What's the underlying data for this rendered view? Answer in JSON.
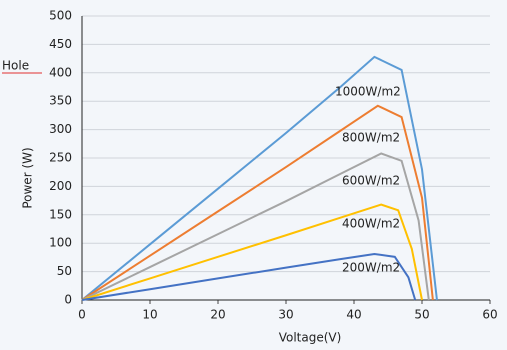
{
  "chart_data": {
    "type": "line",
    "x_label": "Voltage(V)",
    "y_label": "Power (W)",
    "annotation": "Hole",
    "xlim": [
      0,
      60
    ],
    "xticks": [
      0,
      10,
      20,
      30,
      40,
      50,
      60
    ],
    "ylim": [
      0,
      500
    ],
    "yticks": [
      0,
      50,
      100,
      150,
      200,
      250,
      300,
      350,
      400,
      450,
      500
    ],
    "grid": true,
    "series": [
      {
        "name": "1000W/m2",
        "color": "#5b9bd5",
        "x": [
          0,
          10,
          20,
          30,
          38,
          43,
          47,
          50,
          52.2
        ],
        "values": [
          0,
          98,
          196,
          294,
          375,
          428,
          405,
          230,
          0
        ]
      },
      {
        "name": "800W/m2",
        "color": "#ed7d31",
        "x": [
          0,
          10,
          20,
          30,
          38,
          43.5,
          47,
          50,
          51.6
        ],
        "values": [
          0,
          78,
          156,
          234,
          298,
          342,
          322,
          180,
          0
        ]
      },
      {
        "name": "600W/m2",
        "color": "#a5a5a5",
        "x": [
          0,
          10,
          20,
          30,
          38,
          44,
          47,
          49.5,
          51
        ],
        "values": [
          0,
          58,
          116,
          174,
          222,
          258,
          245,
          140,
          0
        ]
      },
      {
        "name": "400W/m2",
        "color": "#ffc000",
        "x": [
          0,
          10,
          20,
          30,
          38,
          44,
          46.5,
          48.5,
          50
        ],
        "values": [
          0,
          38,
          76,
          114,
          145,
          168,
          158,
          90,
          0
        ]
      },
      {
        "name": "200W/m2",
        "color": "#4472c4",
        "x": [
          0,
          10,
          20,
          30,
          38,
          43,
          46,
          48,
          49
        ],
        "values": [
          0,
          19,
          38,
          57,
          72,
          81,
          76,
          40,
          0
        ]
      }
    ]
  }
}
